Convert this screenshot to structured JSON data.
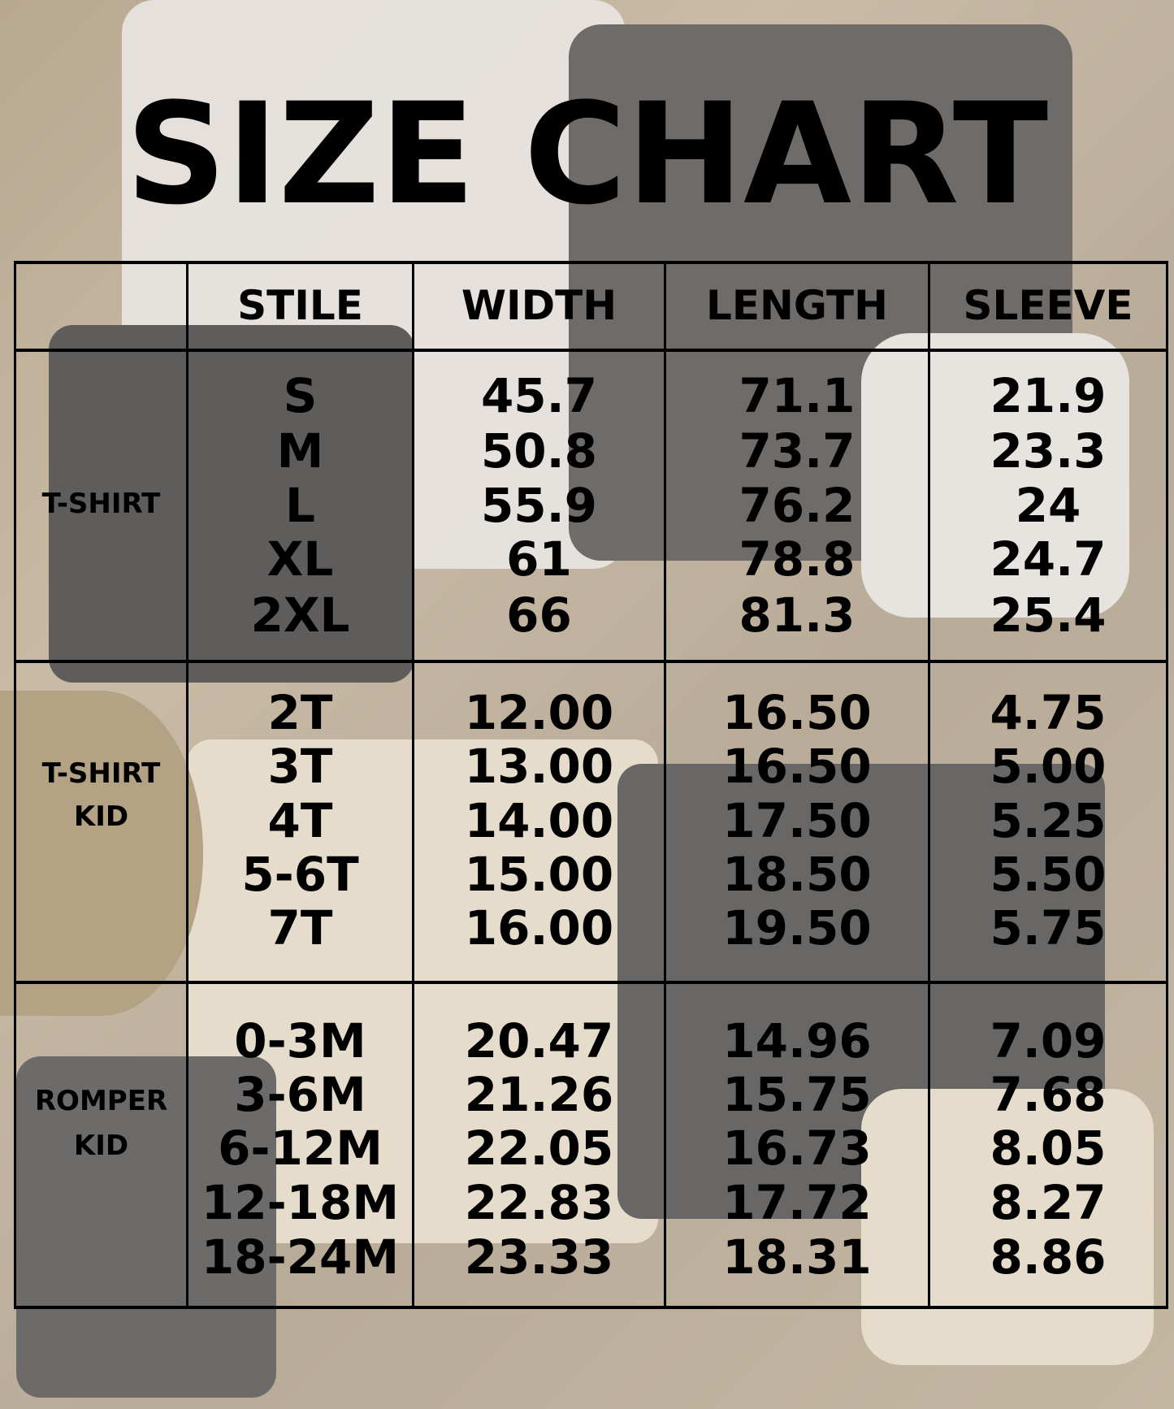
{
  "title": "SIZE CHART",
  "headers": {
    "style": "STILE",
    "width": "WIDTH",
    "length": "LENGTH",
    "sleeve": "SLEEVE"
  },
  "sections": [
    {
      "label_line1": "T-SHIRT",
      "label_line2": "",
      "rows": [
        [
          "S",
          "45.7",
          "71.1",
          "21.9"
        ],
        [
          "M",
          "50.8",
          "73.7",
          "23.3"
        ],
        [
          "L",
          "55.9",
          "76.2",
          "24"
        ],
        [
          "XL",
          "61",
          "78.8",
          "24.7"
        ],
        [
          "2XL",
          "66",
          "81.3",
          "25.4"
        ]
      ]
    },
    {
      "label_line1": "T-SHIRT",
      "label_line2": "KID",
      "rows": [
        [
          "2T",
          "12.00",
          "16.50",
          "4.75"
        ],
        [
          "3T",
          "13.00",
          "16.50",
          "5.00"
        ],
        [
          "4T",
          "14.00",
          "17.50",
          "5.25"
        ],
        [
          "5-6T",
          "15.00",
          "18.50",
          "5.50"
        ],
        [
          "7T",
          "16.00",
          "19.50",
          "5.75"
        ]
      ]
    },
    {
      "label_line1": "ROMPER",
      "label_line2": "KID",
      "rows": [
        [
          "0-3M",
          "20.47",
          "14.96",
          "7.09"
        ],
        [
          "3-6M",
          "21.26",
          "15.75",
          "7.68"
        ],
        [
          "6-12M",
          "22.05",
          "16.73",
          "8.05"
        ],
        [
          "12-18M",
          "22.83",
          "17.72",
          "8.27"
        ],
        [
          "18-24M",
          "23.33",
          "18.31",
          "8.86"
        ]
      ]
    }
  ]
}
